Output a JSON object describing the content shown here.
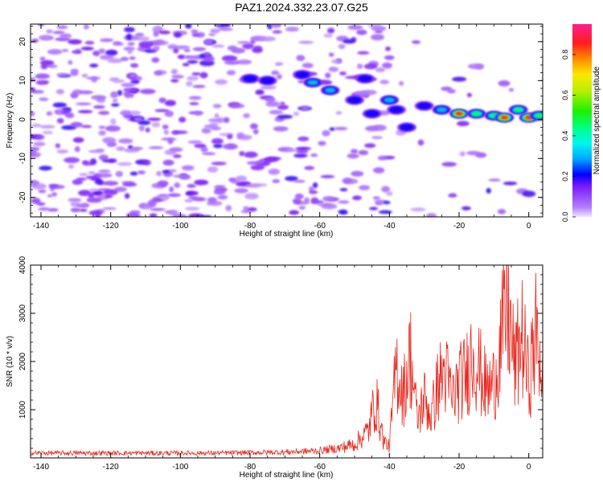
{
  "title": "PAZ1.2024.332.23.07.G25",
  "chart_data": [
    {
      "type": "heatmap",
      "xlabel": "Height of straight line (km)",
      "ylabel": "Frequency (Hz)",
      "xlim": [
        -143,
        4
      ],
      "ylim": [
        -25,
        24.5
      ],
      "xticks": [
        -140,
        -120,
        -100,
        -80,
        -60,
        -40,
        -20,
        0
      ],
      "yticks": [
        -20,
        -10,
        0,
        10,
        20
      ],
      "colorbar": {
        "label": "Normalized spectral amplitude",
        "ticks": [
          0.0,
          0.2,
          0.4,
          0.6,
          0.8
        ],
        "range": [
          0,
          0.95
        ]
      },
      "ridge": [
        {
          "x": -80,
          "y": 10.5,
          "amp": 0.25
        },
        {
          "x": -75,
          "y": 10.0,
          "amp": 0.25
        },
        {
          "x": -65,
          "y": 11.5,
          "amp": 0.2
        },
        {
          "x": -62,
          "y": 9.5,
          "amp": 0.3
        },
        {
          "x": -57,
          "y": 7.5,
          "amp": 0.3
        },
        {
          "x": -50,
          "y": 5.0,
          "amp": 0.25
        },
        {
          "x": -47,
          "y": 10.5,
          "amp": 0.25
        },
        {
          "x": -45,
          "y": 1.5,
          "amp": 0.25
        },
        {
          "x": -40,
          "y": 5.0,
          "amp": 0.3
        },
        {
          "x": -38,
          "y": 2.5,
          "amp": 0.25
        },
        {
          "x": -35,
          "y": -2.0,
          "amp": 0.2
        },
        {
          "x": -30,
          "y": 3.5,
          "amp": 0.2
        },
        {
          "x": -25,
          "y": 2.5,
          "amp": 0.35
        },
        {
          "x": -20,
          "y": 1.5,
          "amp": 0.9
        },
        {
          "x": -15,
          "y": 1.5,
          "amp": 0.6
        },
        {
          "x": -10,
          "y": 1.0,
          "amp": 0.5
        },
        {
          "x": -7,
          "y": 0.5,
          "amp": 0.85
        },
        {
          "x": -3,
          "y": 2.5,
          "amp": 0.6
        },
        {
          "x": 0,
          "y": 0.5,
          "amp": 0.9
        },
        {
          "x": 3,
          "y": 1.0,
          "amp": 0.5
        }
      ]
    },
    {
      "type": "line",
      "xlabel": "Height of straight line (km)",
      "ylabel": "SNR (10 * v/v)",
      "xlim": [
        -143,
        4
      ],
      "ylim": [
        0,
        4000
      ],
      "xticks": [
        -140,
        -120,
        -100,
        -80,
        -60,
        -40,
        -20,
        0
      ],
      "yticks": [
        1000,
        2000,
        3000,
        4000
      ],
      "color": "#e8281e",
      "series": [
        {
          "x": [
            -143,
            -130,
            -120,
            -110,
            -100,
            -90,
            -80,
            -70,
            -60,
            -55,
            -50,
            -46,
            -44,
            -42,
            -40,
            -38,
            -36,
            -34,
            -32,
            -30,
            -28,
            -26,
            -24,
            -22,
            -20,
            -18,
            -16,
            -14,
            -12,
            -10,
            -8,
            -6,
            -4,
            -2,
            0,
            2,
            4
          ],
          "y": [
            100,
            100,
            100,
            100,
            100,
            100,
            110,
            120,
            150,
            200,
            300,
            600,
            1300,
            500,
            300,
            2500,
            1700,
            2800,
            1000,
            1600,
            1100,
            2000,
            2300,
            1600,
            2000,
            2200,
            2900,
            2300,
            1800,
            2000,
            3100,
            4000,
            2400,
            3300,
            2000,
            3300,
            2400
          ]
        }
      ]
    }
  ]
}
